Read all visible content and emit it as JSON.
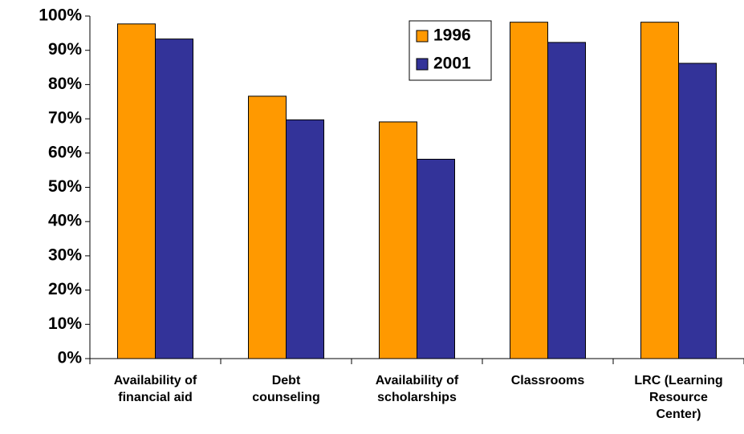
{
  "chart_data": {
    "type": "bar",
    "categories": [
      "Availability of\nfinancial aid",
      "Debt\ncounseling",
      "Availability of\nscholarships",
      "Classrooms",
      "LRC (Learning\nResource\nCenter)"
    ],
    "series": [
      {
        "name": "1996",
        "color": "#FF9900",
        "values": [
          97.7,
          76.6,
          69.1,
          98.2,
          98.2
        ]
      },
      {
        "name": "2001",
        "color": "#333399",
        "values": [
          93.3,
          69.7,
          58.2,
          92.3,
          86.2
        ]
      }
    ],
    "ylim": [
      0,
      100
    ],
    "yticks": [
      {
        "value": 0,
        "label": "0%"
      },
      {
        "value": 10,
        "label": "10%"
      },
      {
        "value": 20,
        "label": "20%"
      },
      {
        "value": 30,
        "label": "30%"
      },
      {
        "value": 40,
        "label": "40%"
      },
      {
        "value": 50,
        "label": "50%"
      },
      {
        "value": 60,
        "label": "60%"
      },
      {
        "value": 70,
        "label": "70%"
      },
      {
        "value": 80,
        "label": "80%"
      },
      {
        "value": 90,
        "label": "90%"
      },
      {
        "value": 100,
        "label": "100%"
      }
    ],
    "legend": "top-center"
  }
}
